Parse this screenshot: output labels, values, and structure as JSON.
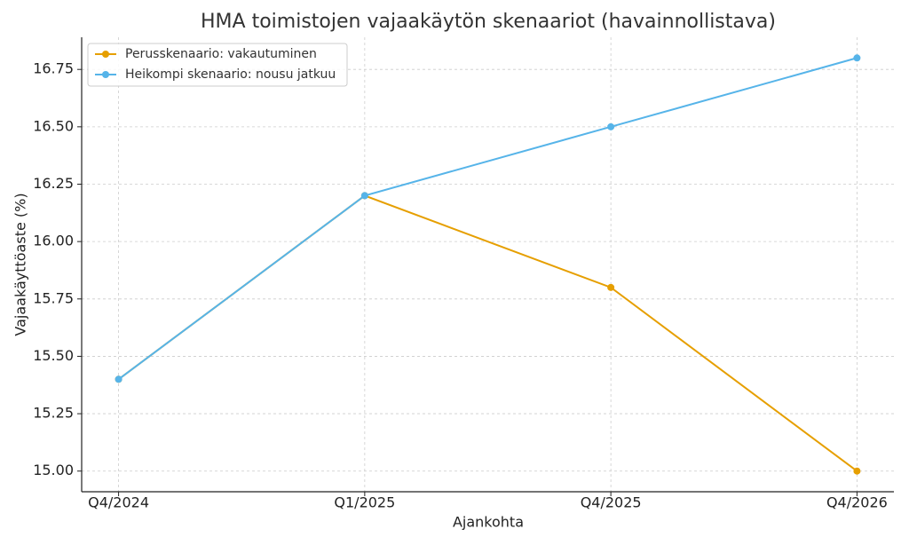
{
  "chart_data": {
    "type": "line",
    "title": "HMA toimistojen vajaakäytön skenaariot (havainnollistava)",
    "xlabel": "Ajankohta",
    "ylabel": "Vajaakäyttöaste (%)",
    "categories": [
      "Q4/2024",
      "Q1/2025",
      "Q4/2025",
      "Q4/2026"
    ],
    "series": [
      {
        "name": "Perusskenaario: vakautuminen",
        "color": "#e69f00",
        "values": [
          15.4,
          16.2,
          15.8,
          15.0
        ]
      },
      {
        "name": "Heikompi skenaario: nousu jatkuu",
        "color": "#56b4e9",
        "values": [
          15.4,
          16.2,
          16.5,
          16.8
        ]
      }
    ],
    "ylim": [
      14.91,
      16.89
    ],
    "yticks": [
      {
        "value": 15.0,
        "label": "15.00"
      },
      {
        "value": 15.25,
        "label": "15.25"
      },
      {
        "value": 15.5,
        "label": "15.50"
      },
      {
        "value": 15.75,
        "label": "15.75"
      },
      {
        "value": 16.0,
        "label": "16.00"
      },
      {
        "value": 16.25,
        "label": "16.25"
      },
      {
        "value": 16.5,
        "label": "16.50"
      },
      {
        "value": 16.75,
        "label": "16.75"
      }
    ],
    "grid": true,
    "legend": "upper-left"
  }
}
